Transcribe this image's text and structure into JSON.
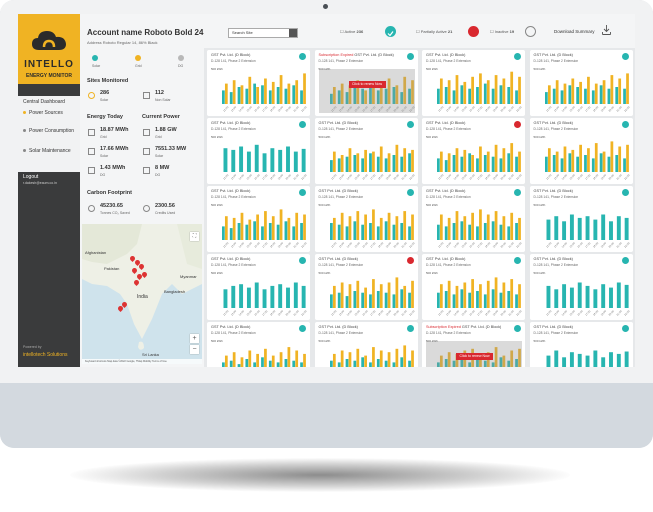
{
  "brand": {
    "name": "INTELLO",
    "subtitle": "ENERGY MONITOR",
    "powered_by": "Powered by",
    "company": "intellotech Solutions"
  },
  "menu": {
    "title": "Central Dashboard",
    "items": [
      {
        "label": "Power Sources",
        "active": true
      },
      {
        "label": "Power Consumption",
        "active": false
      },
      {
        "label": "Solar Maintenance",
        "active": false
      }
    ]
  },
  "logout": {
    "label": "Logout",
    "email": "r.dakesh@eaum.co.in"
  },
  "account": {
    "name": "Account name Roboto Bold 24",
    "address": "Address Roboto Regular 14, 86% Black"
  },
  "status_legend": [
    {
      "label": "Solar",
      "color": "#27b5b0"
    },
    {
      "label": "Grid",
      "color": "#f0b323"
    },
    {
      "label": "DG",
      "color": "#b8b8b8"
    }
  ],
  "sites": {
    "title": "Sites Monitored",
    "solar_value": "286",
    "solar_label": "Solar",
    "nonsolar_value": "112",
    "nonsolar_label": "Non Solar"
  },
  "energy_today": {
    "title": "Energy Today",
    "items": [
      {
        "value": "18.87 MWh",
        "label": "Grid"
      },
      {
        "value": "17.66 MWh",
        "label": "Solar"
      },
      {
        "value": "1.43 MWh",
        "label": "DG"
      }
    ]
  },
  "current_power": {
    "title": "Current Power",
    "items": [
      {
        "value": "1.88 GW",
        "label": "Grid"
      },
      {
        "value": "7551.33 MW",
        "label": "Solar"
      },
      {
        "value": "8 MW",
        "label": "DG"
      }
    ]
  },
  "carbon": {
    "title": "Carbon Footprint",
    "co2_value": "45230.65",
    "co2_label": "Tonnes CO₂ Saved",
    "credits_value": "2300.56",
    "credits_label": "Credits Used"
  },
  "map": {
    "labels": [
      "Afghanistan",
      "Pakistan",
      "India",
      "Bangladesh",
      "Sri Lanka",
      "Myanmar"
    ],
    "footer": "Keyboard shortcuts  Map data ©2022 Google, TMap Mobility  Terms of Use",
    "zoom_in": "+",
    "zoom_out": "−"
  },
  "topbar": {
    "search_label": "Search Site",
    "filters": [
      {
        "label": "Active",
        "count": "236"
      },
      {
        "label": "Partially Active",
        "count": "21"
      },
      {
        "label": "Inactive",
        "count": "19"
      }
    ],
    "download_label": "Download Summary"
  },
  "card_common": {
    "plant": "GST Pvt. Ltd. (D Block)",
    "address": "D-128 141, Phase 2 Extension",
    "unit": "500 kWh",
    "alert_prefix": "Subscription Expired",
    "review_label": "Click to renew Now",
    "xticks": [
      "12:00",
      "13:00",
      "14:00",
      "15:00",
      "16:00",
      "17:00",
      "18:00",
      "19:00",
      "20:00",
      "21:00",
      "22:00"
    ]
  },
  "colors": {
    "solar": "#27b5b0",
    "grid": "#f0b323",
    "dg": "#b8b8b8",
    "ok": "#27b5b0",
    "alert": "#d9282f"
  },
  "cards": [
    {
      "status": "ok",
      "expired": false,
      "style": "mixed",
      "values": [
        [
          40,
          60
        ],
        [
          35,
          70
        ],
        [
          50,
          55
        ],
        [
          45,
          80
        ],
        [
          60,
          50
        ],
        [
          55,
          75
        ],
        [
          40,
          65
        ],
        [
          50,
          85
        ],
        [
          45,
          60
        ],
        [
          55,
          70
        ],
        [
          40,
          90
        ]
      ]
    },
    {
      "status": "ok",
      "expired": true,
      "style": "mixed",
      "values": [
        [
          30,
          50
        ],
        [
          40,
          60
        ],
        [
          35,
          55
        ],
        [
          50,
          70
        ],
        [
          45,
          40
        ],
        [
          55,
          65
        ],
        [
          40,
          60
        ],
        [
          45,
          75
        ],
        [
          50,
          55
        ],
        [
          35,
          80
        ],
        [
          45,
          70
        ]
      ]
    },
    {
      "status": "ok",
      "expired": false,
      "style": "mixed",
      "values": [
        [
          45,
          75
        ],
        [
          50,
          70
        ],
        [
          40,
          85
        ],
        [
          55,
          65
        ],
        [
          45,
          80
        ],
        [
          50,
          90
        ],
        [
          60,
          70
        ],
        [
          45,
          85
        ],
        [
          55,
          75
        ],
        [
          50,
          95
        ],
        [
          40,
          80
        ]
      ]
    },
    {
      "status": "ok",
      "expired": false,
      "style": "mixed",
      "values": [
        [
          35,
          55
        ],
        [
          45,
          70
        ],
        [
          40,
          60
        ],
        [
          55,
          75
        ],
        [
          50,
          65
        ],
        [
          45,
          80
        ],
        [
          40,
          60
        ],
        [
          55,
          70
        ],
        [
          45,
          85
        ],
        [
          50,
          75
        ],
        [
          45,
          90
        ]
      ]
    },
    {
      "status": "ok",
      "expired": false,
      "style": "solar",
      "values": [
        [
          70,
          0
        ],
        [
          65,
          0
        ],
        [
          75,
          0
        ],
        [
          60,
          0
        ],
        [
          80,
          0
        ],
        [
          55,
          0
        ],
        [
          70,
          0
        ],
        [
          65,
          0
        ],
        [
          75,
          0
        ],
        [
          60,
          0
        ],
        [
          68,
          0
        ]
      ]
    },
    {
      "status": "ok",
      "expired": false,
      "style": "mixed",
      "values": [
        [
          35,
          60
        ],
        [
          40,
          50
        ],
        [
          45,
          70
        ],
        [
          50,
          55
        ],
        [
          40,
          65
        ],
        [
          55,
          60
        ],
        [
          45,
          75
        ],
        [
          40,
          55
        ],
        [
          50,
          80
        ],
        [
          45,
          70
        ],
        [
          55,
          65
        ]
      ]
    },
    {
      "status": "alert",
      "expired": false,
      "style": "mixed",
      "values": [
        [
          40,
          60
        ],
        [
          35,
          55
        ],
        [
          50,
          70
        ],
        [
          45,
          65
        ],
        [
          55,
          50
        ],
        [
          40,
          75
        ],
        [
          50,
          60
        ],
        [
          45,
          80
        ],
        [
          40,
          70
        ],
        [
          55,
          85
        ],
        [
          45,
          60
        ]
      ]
    },
    {
      "status": "ok",
      "expired": false,
      "style": "mixed",
      "values": [
        [
          45,
          70
        ],
        [
          50,
          60
        ],
        [
          40,
          75
        ],
        [
          55,
          65
        ],
        [
          45,
          80
        ],
        [
          50,
          70
        ],
        [
          40,
          85
        ],
        [
          55,
          60
        ],
        [
          45,
          90
        ],
        [
          50,
          75
        ],
        [
          40,
          80
        ]
      ]
    },
    {
      "status": "ok",
      "expired": false,
      "style": "mixed",
      "values": [
        [
          40,
          70
        ],
        [
          35,
          65
        ],
        [
          50,
          80
        ],
        [
          45,
          60
        ],
        [
          55,
          75
        ],
        [
          40,
          85
        ],
        [
          50,
          70
        ],
        [
          45,
          90
        ],
        [
          55,
          65
        ],
        [
          40,
          80
        ],
        [
          50,
          75
        ]
      ]
    },
    {
      "status": "ok",
      "expired": false,
      "style": "mixed",
      "values": [
        [
          50,
          65
        ],
        [
          45,
          80
        ],
        [
          40,
          70
        ],
        [
          55,
          85
        ],
        [
          45,
          75
        ],
        [
          50,
          90
        ],
        [
          40,
          65
        ],
        [
          55,
          80
        ],
        [
          45,
          70
        ],
        [
          50,
          85
        ],
        [
          40,
          75
        ]
      ]
    },
    {
      "status": "ok",
      "expired": false,
      "style": "mixed",
      "values": [
        [
          45,
          75
        ],
        [
          40,
          65
        ],
        [
          50,
          85
        ],
        [
          55,
          70
        ],
        [
          45,
          80
        ],
        [
          40,
          90
        ],
        [
          50,
          75
        ],
        [
          55,
          85
        ],
        [
          45,
          70
        ],
        [
          40,
          80
        ],
        [
          50,
          65
        ]
      ]
    },
    {
      "status": "ok",
      "expired": false,
      "style": "solar",
      "values": [
        [
          60,
          0
        ],
        [
          70,
          0
        ],
        [
          55,
          0
        ],
        [
          75,
          0
        ],
        [
          65,
          0
        ],
        [
          70,
          0
        ],
        [
          60,
          0
        ],
        [
          75,
          0
        ],
        [
          55,
          0
        ],
        [
          70,
          0
        ],
        [
          65,
          0
        ]
      ]
    },
    {
      "status": "ok",
      "expired": false,
      "style": "solar",
      "values": [
        [
          55,
          0
        ],
        [
          65,
          0
        ],
        [
          70,
          0
        ],
        [
          60,
          0
        ],
        [
          75,
          0
        ],
        [
          55,
          0
        ],
        [
          65,
          0
        ],
        [
          70,
          0
        ],
        [
          60,
          0
        ],
        [
          75,
          0
        ],
        [
          65,
          0
        ]
      ]
    },
    {
      "status": "alert",
      "expired": false,
      "style": "mixed",
      "values": [
        [
          40,
          65
        ],
        [
          45,
          75
        ],
        [
          35,
          70
        ],
        [
          50,
          80
        ],
        [
          45,
          60
        ],
        [
          40,
          85
        ],
        [
          50,
          70
        ],
        [
          45,
          75
        ],
        [
          40,
          90
        ],
        [
          55,
          65
        ],
        [
          45,
          80
        ]
      ]
    },
    {
      "status": "ok",
      "expired": false,
      "style": "mixed",
      "values": [
        [
          45,
          70
        ],
        [
          50,
          80
        ],
        [
          40,
          65
        ],
        [
          55,
          75
        ],
        [
          45,
          85
        ],
        [
          50,
          70
        ],
        [
          40,
          80
        ],
        [
          55,
          90
        ],
        [
          45,
          75
        ],
        [
          50,
          85
        ],
        [
          40,
          70
        ]
      ]
    },
    {
      "status": "ok",
      "expired": false,
      "style": "solar",
      "values": [
        [
          65,
          0
        ],
        [
          55,
          0
        ],
        [
          70,
          0
        ],
        [
          60,
          0
        ],
        [
          75,
          0
        ],
        [
          65,
          0
        ],
        [
          55,
          0
        ],
        [
          70,
          0
        ],
        [
          60,
          0
        ],
        [
          75,
          0
        ],
        [
          68,
          0
        ]
      ]
    },
    {
      "status": "ok",
      "expired": false,
      "style": "mixed",
      "values": [
        [
          40,
          60
        ],
        [
          45,
          70
        ],
        [
          35,
          55
        ],
        [
          50,
          75
        ],
        [
          40,
          65
        ],
        [
          55,
          80
        ],
        [
          45,
          60
        ],
        [
          40,
          70
        ],
        [
          50,
          85
        ],
        [
          45,
          75
        ],
        [
          40,
          65
        ]
      ]
    },
    {
      "status": "ok",
      "expired": false,
      "style": "mixed",
      "values": [
        [
          45,
          65
        ],
        [
          40,
          75
        ],
        [
          50,
          70
        ],
        [
          45,
          80
        ],
        [
          55,
          60
        ],
        [
          40,
          85
        ],
        [
          50,
          75
        ],
        [
          45,
          70
        ],
        [
          40,
          80
        ],
        [
          55,
          90
        ],
        [
          45,
          75
        ]
      ]
    },
    {
      "status": "ok",
      "expired": true,
      "style": "mixed",
      "values": [
        [
          40,
          60
        ],
        [
          50,
          70
        ],
        [
          45,
          65
        ],
        [
          55,
          75
        ],
        [
          40,
          80
        ],
        [
          50,
          65
        ],
        [
          45,
          70
        ],
        [
          40,
          85
        ],
        [
          55,
          60
        ],
        [
          45,
          75
        ],
        [
          50,
          80
        ]
      ]
    },
    {
      "status": "ok",
      "expired": false,
      "style": "solar",
      "values": [
        [
          60,
          0
        ],
        [
          75,
          0
        ],
        [
          55,
          0
        ],
        [
          70,
          0
        ],
        [
          65,
          0
        ],
        [
          60,
          0
        ],
        [
          75,
          0
        ],
        [
          55,
          0
        ],
        [
          70,
          0
        ],
        [
          65,
          0
        ],
        [
          72,
          0
        ]
      ]
    }
  ]
}
